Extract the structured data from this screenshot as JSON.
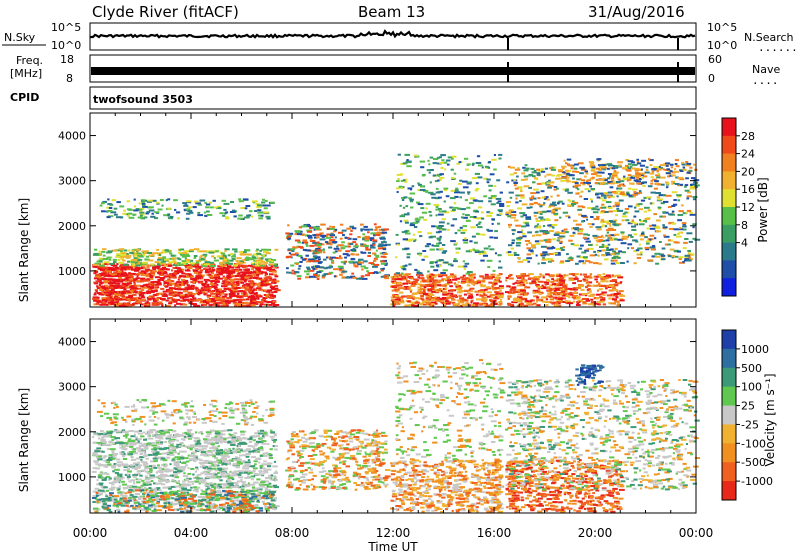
{
  "header": {
    "title": "Clyde River (fitACF)",
    "beam": "Beam 13",
    "date": "31/Aug/2016"
  },
  "panels": {
    "nsky": {
      "left_label": "N.Sky",
      "left_tick_top": "10^5",
      "left_tick_bottom": "10^0",
      "right_label": "N.Search",
      "right_tick_top": "10^5",
      "right_tick_bottom": "10^0"
    },
    "freq": {
      "left_label_1": "Freq.",
      "left_label_2": "[MHz]",
      "left_tick_top": "18",
      "left_tick_bottom": "8",
      "right_label": "Nave",
      "right_tick_top": "60",
      "right_tick_bottom": "0"
    },
    "cpid": {
      "left_label": "CPID",
      "value": "twofsound 3503"
    }
  },
  "chart_data": [
    {
      "type": "heatmap",
      "name": "power",
      "ylabel": "Slant Range [km]",
      "ylim": [
        200,
        4500
      ],
      "yticks": [
        "1000",
        "2000",
        "3000",
        "4000"
      ],
      "xticks": [
        "00:00",
        "04:00",
        "08:00",
        "12:00",
        "16:00",
        "20:00",
        "00:00"
      ],
      "colorbar": {
        "label": "Power [dB]",
        "ticks": [
          "28",
          "24",
          "20",
          "16",
          "12",
          "8",
          "4"
        ],
        "colors": [
          "#e8121c",
          "#f04a1a",
          "#f08020",
          "#f0b030",
          "#e0e030",
          "#58c048",
          "#3a9e62",
          "#2a7a8c",
          "#1f4ea8",
          "#1020e0"
        ]
      }
    },
    {
      "type": "heatmap",
      "name": "velocity",
      "ylabel": "Slant Range [km]",
      "ylim": [
        200,
        4500
      ],
      "yticks": [
        "1000",
        "2000",
        "3000",
        "4000"
      ],
      "xticks": [
        "00:00",
        "04:00",
        "08:00",
        "12:00",
        "16:00",
        "20:00",
        "00:00"
      ],
      "xlabel": "Time UT",
      "colorbar": {
        "label": "Velocity [m s⁻¹]",
        "ticks": [
          "1000",
          "500",
          "100",
          "25",
          "-25",
          "-100",
          "-500",
          "-1000"
        ],
        "colors": [
          "#1f3fa8",
          "#2c6fa0",
          "#3c9a78",
          "#60c850",
          "#c8c8c8",
          "#f0b030",
          "#f09020",
          "#f06020",
          "#e82818"
        ]
      }
    }
  ]
}
